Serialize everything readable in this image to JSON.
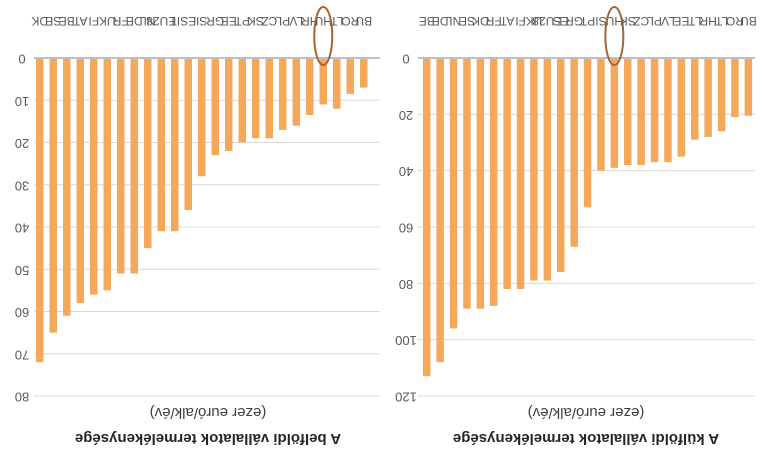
{
  "colors": {
    "bar": "#F5A85A",
    "grid": "#D9D9D9",
    "highlight": "#A0673A",
    "axis": "#7F7F7F"
  },
  "chart_data": [
    {
      "type": "bar",
      "orientation": "inverted-vertical",
      "title": "A belföldi vállalatok termelékenysége",
      "unit_label": "(ezer euró/alk/év)",
      "ylim": [
        0,
        80
      ],
      "yticks": [
        0,
        10,
        20,
        30,
        40,
        50,
        60,
        70,
        80
      ],
      "grid": true,
      "highlighted_category": "HU",
      "categories": [
        "DK",
        "SE",
        "BE",
        "AT",
        "FI",
        "UK",
        "FR",
        "DE",
        "NL",
        "EU28",
        "IT",
        "ES",
        "SI",
        "GR",
        "EE",
        "PT",
        "SK",
        "CZ",
        "PL",
        "LV",
        "HR",
        "HU",
        "LT",
        "RO",
        "BU"
      ],
      "values": [
        72,
        65,
        61,
        58,
        56,
        55,
        51,
        51,
        45,
        41,
        41,
        36,
        28,
        23,
        22,
        20,
        19,
        19,
        17,
        16,
        13.5,
        11,
        12,
        8.5,
        7
      ]
    },
    {
      "type": "bar",
      "orientation": "inverted-vertical",
      "title": "A külföldi vállalatok termelékenysége",
      "unit_label": "(ezer euró/alk/év)",
      "ylim": [
        0,
        120
      ],
      "yticks": [
        0,
        20,
        40,
        60,
        80,
        100,
        120
      ],
      "grid": true,
      "highlighted_category": "HU",
      "categories": [
        "BE",
        "DE",
        "NL",
        "SE",
        "DK",
        "FR",
        "AT",
        "FI",
        "UK",
        "EU28",
        "ES",
        "GR",
        "PT",
        "SI",
        "HU",
        "SK",
        "CZ",
        "PL",
        "LV",
        "EE",
        "LT",
        "HR",
        "LT",
        "RO",
        "BU"
      ],
      "values": [
        113,
        108,
        96,
        89,
        89,
        88,
        82,
        82,
        79,
        79,
        76,
        67,
        53,
        40,
        39,
        38,
        38,
        37,
        37,
        35,
        29,
        28,
        26,
        21,
        20.5
      ]
    }
  ]
}
